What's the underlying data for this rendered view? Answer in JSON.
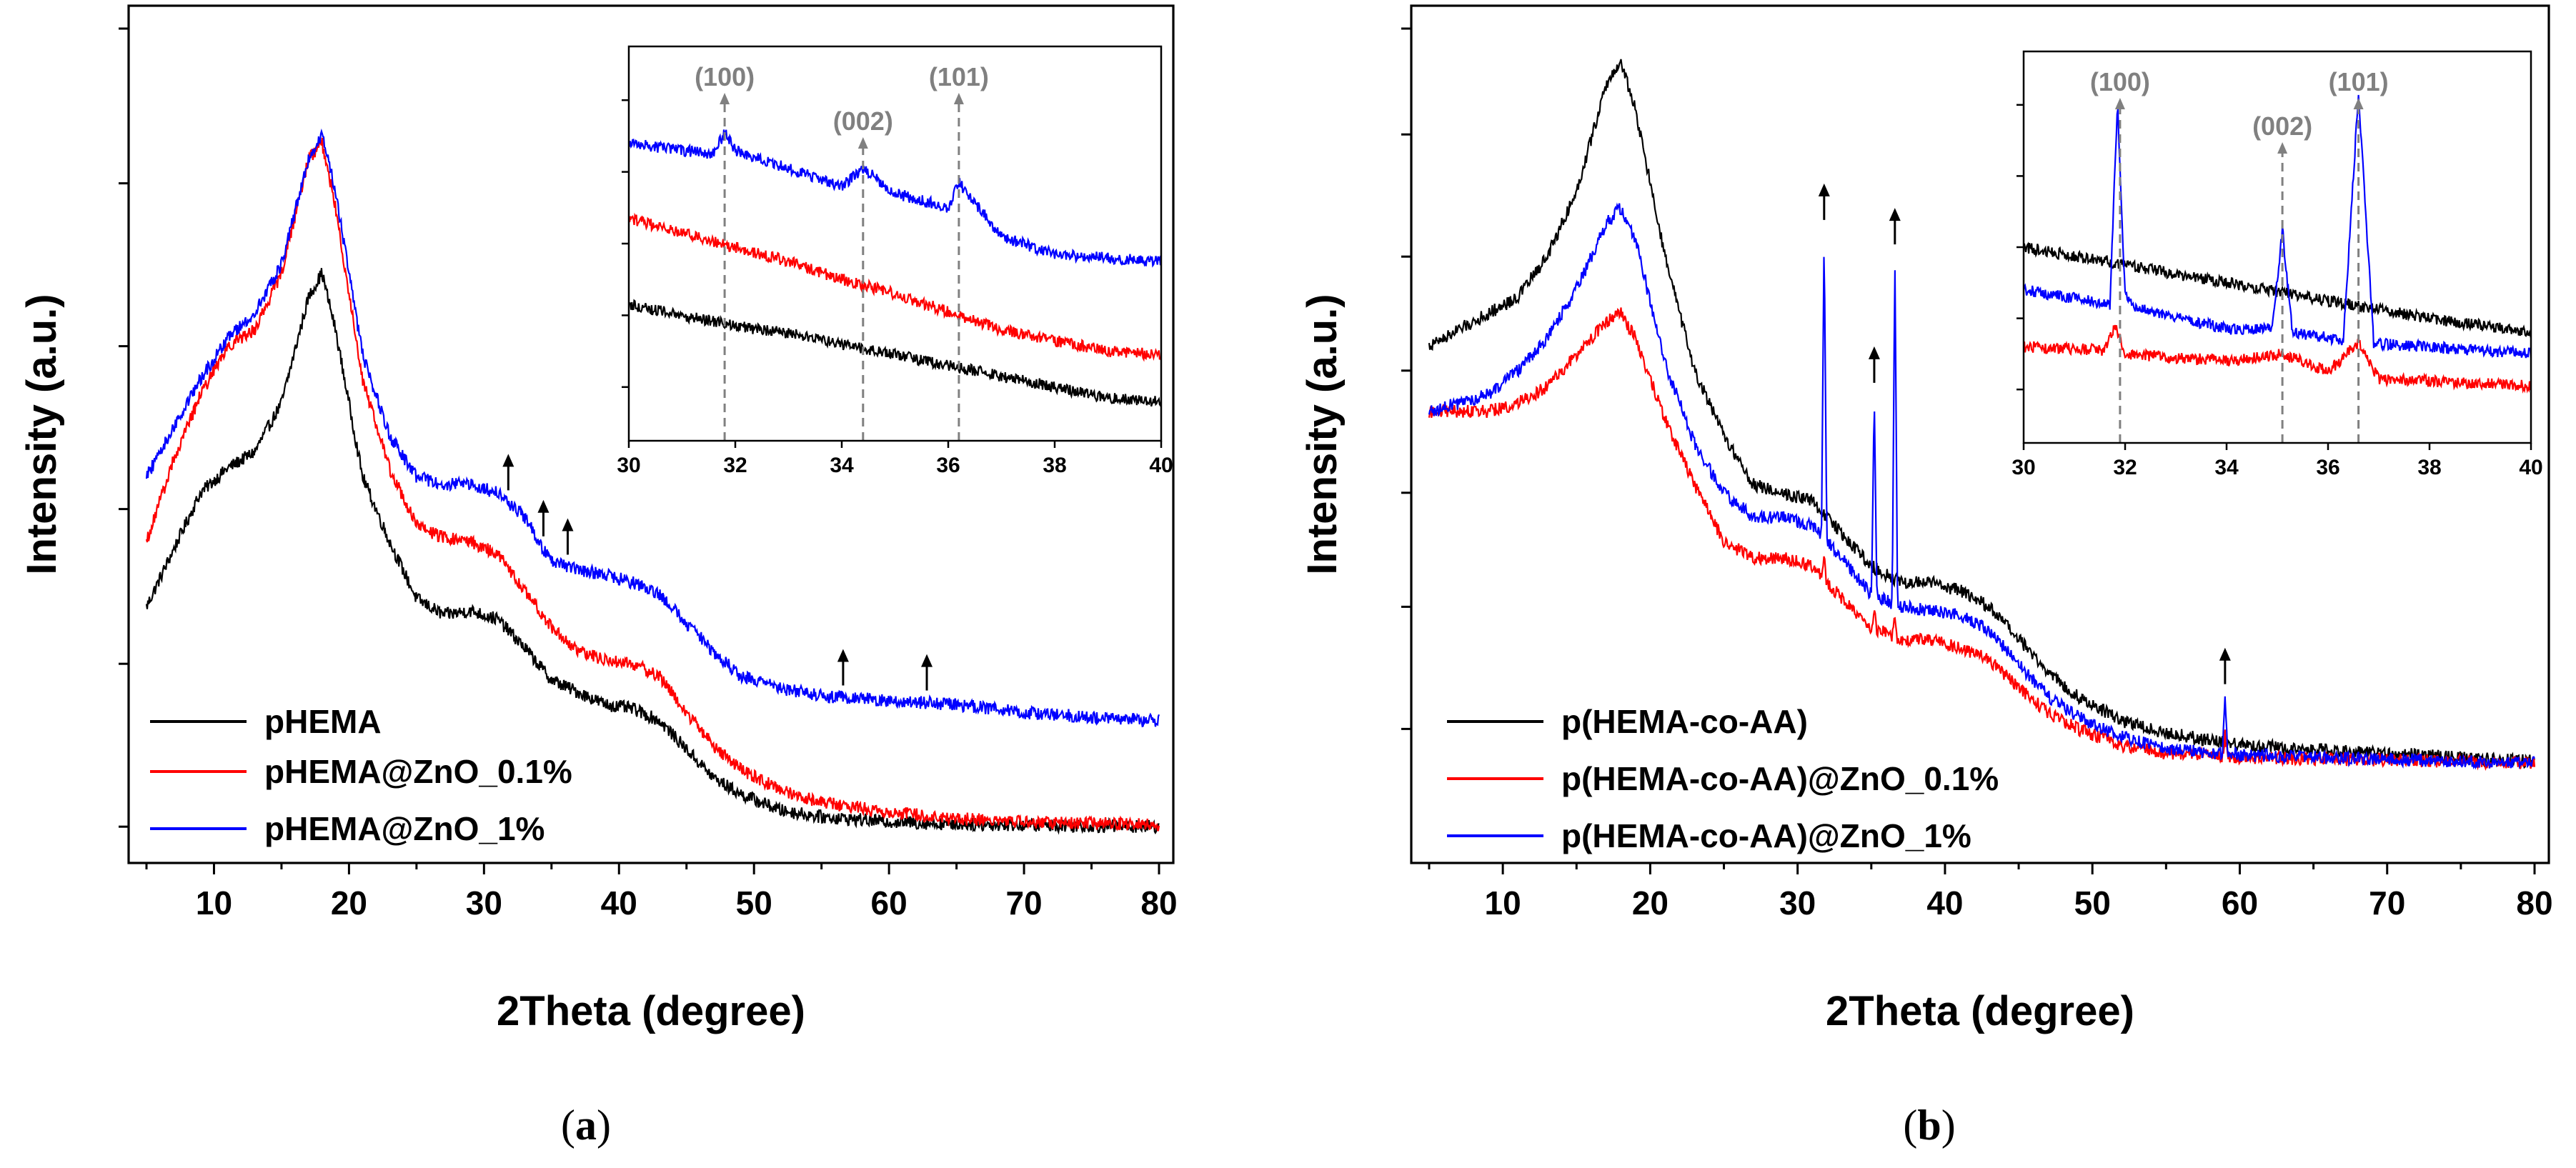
{
  "figure": {
    "panels": [
      "a",
      "b"
    ],
    "captions": {
      "a_open": "(",
      "a_letter": "a",
      "a_close": ")",
      "b_open": "(",
      "b_letter": "b",
      "b_close": ")"
    }
  },
  "chart_data": [
    {
      "id": "a",
      "type": "line",
      "xlabel": "2Theta (degree)",
      "ylabel": "Intensity (a.u.)",
      "xlim": [
        5,
        80
      ],
      "xticks": [
        10,
        20,
        30,
        40,
        50,
        60,
        70,
        80
      ],
      "xtick_labels": [
        "10",
        "20",
        "30",
        "40",
        "50",
        "60",
        "70",
        "80"
      ],
      "ylim": [
        0,
        100
      ],
      "y_tick_values": [
        2,
        22,
        41,
        61,
        81,
        100
      ],
      "y_tick_labels_shown": false,
      "series": [
        {
          "name": "pHEMA",
          "color": "#000000",
          "x": [
            5,
            7,
            9,
            11,
            13,
            15,
            17,
            18,
            19,
            21,
            23,
            25,
            27,
            29,
            31,
            33,
            35,
            37,
            39,
            41,
            43,
            45,
            47,
            49,
            52,
            55,
            60,
            65,
            70,
            75,
            80
          ],
          "y": [
            29,
            36,
            43,
            46,
            48,
            54,
            67,
            70,
            63,
            45,
            37,
            30,
            28,
            28.5,
            27.5,
            24,
            20,
            18.5,
            17,
            16.5,
            15,
            11.5,
            8,
            6,
            4,
            3.2,
            2.6,
            2.3,
            2.2,
            2.1,
            2
          ]
        },
        {
          "name": "pHEMA@ZnO_0.1%",
          "color": "#ff0000",
          "x": [
            5,
            7,
            9,
            11,
            13,
            15,
            17,
            18,
            19,
            21,
            23,
            25,
            27,
            29,
            31,
            33,
            35,
            37,
            39,
            41,
            43,
            45,
            47,
            49,
            52,
            55,
            60,
            65,
            70,
            75,
            80
          ],
          "y": [
            37,
            47,
            55,
            61,
            63,
            70,
            84,
            86,
            78,
            57,
            46,
            39,
            37.5,
            37,
            35.5,
            31,
            26.5,
            23.5,
            22.5,
            22,
            20.5,
            16,
            12,
            9,
            6.5,
            5,
            3.8,
            3,
            2.6,
            2.4,
            2.2
          ]
        },
        {
          "name": "pHEMA@ZnO_1%",
          "color": "#0000ff",
          "x": [
            5,
            7,
            9,
            11,
            13,
            15,
            17,
            18,
            19,
            21,
            23,
            25,
            27,
            29,
            31,
            33,
            35,
            37,
            39,
            41,
            43,
            45,
            47,
            49,
            52,
            55,
            60,
            65,
            70,
            75,
            80
          ],
          "y": [
            45,
            51,
            57,
            62,
            65,
            71,
            84,
            87,
            80,
            60,
            50,
            45,
            44,
            44,
            43,
            40,
            34.5,
            33.5,
            33,
            32,
            30.5,
            27,
            23.5,
            20.5,
            19,
            18,
            17.5,
            17,
            16,
            15.5,
            15
          ]
        }
      ],
      "peak_markers": [
        {
          "x": 31.8
        },
        {
          "x": 34.4
        },
        {
          "x": 36.2
        },
        {
          "x": 56.6
        },
        {
          "x": 62.8
        }
      ],
      "legend": {
        "placement": "bottom-left",
        "entries": [
          "pHEMA",
          "pHEMA@ZnO_0.1%",
          "pHEMA@ZnO_1%"
        ]
      },
      "inset": {
        "xlim": [
          30,
          40
        ],
        "xticks": [
          30,
          32,
          34,
          36,
          38,
          40
        ],
        "xtick_labels": [
          "30",
          "32",
          "34",
          "36",
          "38",
          "40"
        ],
        "ylim": [
          0,
          100
        ],
        "y_tick_values": [
          10,
          30,
          50,
          70,
          90
        ],
        "peaks": [
          {
            "label": "(100)",
            "x": 31.8
          },
          {
            "label": "(002)",
            "x": 34.4
          },
          {
            "label": "(101)",
            "x": 36.2
          }
        ],
        "series": [
          {
            "name": "pHEMA",
            "color": "#000000",
            "x": [
              30,
              31,
              32,
              33,
              34,
              35,
              36,
              37,
              38,
              39,
              40
            ],
            "y": [
              33,
              30,
              27,
              25,
              22,
              19,
              16,
              13,
              10,
              7,
              6
            ]
          },
          {
            "name": "pHEMA@ZnO_0.1%",
            "color": "#ff0000",
            "x": [
              30,
              31,
              32,
              33,
              34,
              35,
              36,
              37,
              38,
              39,
              40
            ],
            "y": [
              57,
              53,
              49,
              45,
              40,
              36,
              31,
              26,
              23,
              20,
              19
            ]
          },
          {
            "name": "pHEMA@ZnO_1%",
            "color": "#0000ff",
            "x": [
              30,
              31,
              31.6,
              31.8,
              32,
              33,
              34,
              34.4,
              35,
              36,
              36.2,
              37,
              38,
              39,
              40
            ],
            "y": [
              78,
              76,
              75,
              81,
              76,
              71,
              66,
              71,
              64,
              60,
              67,
              52,
              47,
              46,
              45
            ]
          }
        ]
      }
    },
    {
      "id": "b",
      "type": "line",
      "xlabel": "2Theta (degree)",
      "ylabel": "Intensity (a.u.)",
      "xlim": [
        5,
        80
      ],
      "xticks": [
        10,
        20,
        30,
        40,
        50,
        60,
        70,
        80
      ],
      "xtick_labels": [
        "10",
        "20",
        "30",
        "40",
        "50",
        "60",
        "70",
        "80"
      ],
      "ylim": [
        0,
        100
      ],
      "y_tick_values": [
        14,
        29,
        43,
        58,
        72,
        87,
        100
      ],
      "y_tick_labels_shown": false,
      "series": [
        {
          "name": "p(HEMA-co-AA)",
          "color": "#000000",
          "x": [
            5,
            7,
            9,
            11,
            13,
            15,
            17,
            18,
            19,
            21,
            23,
            25,
            27,
            29,
            31,
            33,
            35,
            37,
            39,
            41,
            43,
            45,
            47,
            49,
            52,
            55,
            60,
            65,
            70,
            75,
            80
          ],
          "y": [
            61,
            63,
            65,
            67,
            72,
            80,
            93,
            96,
            90,
            72,
            58,
            50,
            44,
            43,
            42,
            38,
            34,
            32,
            32,
            31,
            29,
            25,
            21,
            18,
            15,
            13.5,
            12,
            11.5,
            11,
            10.5,
            10
          ]
        },
        {
          "name": "p(HEMA-co-AA)@ZnO_0.1%",
          "color": "#ff0000",
          "x": [
            5,
            7,
            9,
            11,
            13,
            15,
            17,
            18,
            19,
            21,
            23,
            25,
            27,
            29,
            31,
            33,
            35,
            37,
            39,
            41,
            43,
            45,
            47,
            49,
            52,
            55,
            60,
            65,
            70,
            75,
            80
          ],
          "y": [
            53,
            53,
            53,
            54,
            56,
            60,
            64,
            65,
            62,
            52,
            44,
            37,
            35,
            35,
            34,
            30,
            26.5,
            25,
            25,
            24,
            22.5,
            19,
            16,
            14,
            12,
            11,
            10.5,
            10.3,
            10.2,
            10,
            9.8
          ]
        },
        {
          "name": "p(HEMA-co-AA)@ZnO_1%",
          "color": "#0000ff",
          "x": [
            5,
            7,
            9,
            11,
            13,
            15,
            17,
            18,
            19,
            21,
            23,
            25,
            27,
            29,
            31,
            33,
            35,
            37,
            39,
            41,
            43,
            45,
            47,
            49,
            52,
            55,
            60,
            65,
            70,
            75,
            80
          ],
          "y": [
            53,
            54,
            55,
            58,
            62,
            68,
            76,
            78,
            74,
            59,
            49,
            43,
            40,
            40,
            39,
            35,
            30.5,
            29,
            28.5,
            28,
            26,
            22,
            18,
            15.5,
            13,
            11.5,
            10.8,
            10.5,
            10.3,
            10,
            9.8
          ]
        }
      ],
      "sharp_peaks": [
        {
          "x": 31.8,
          "top": 75
        },
        {
          "x": 35.2,
          "top": 55
        },
        {
          "x": 36.6,
          "top": 72
        },
        {
          "x": 59,
          "top": 18
        }
      ],
      "peak_markers": [
        {
          "x": 31.8
        },
        {
          "x": 35.2
        },
        {
          "x": 36.6
        },
        {
          "x": 59
        }
      ],
      "legend": {
        "placement": "bottom-left",
        "entries": [
          "p(HEMA-co-AA)",
          "p(HEMA-co-AA)@ZnO_0.1%",
          "p(HEMA-co-AA)@ZnO_1%"
        ]
      },
      "inset": {
        "xlim": [
          30,
          40
        ],
        "xticks": [
          30,
          32,
          34,
          36,
          38,
          40
        ],
        "xtick_labels": [
          "30",
          "32",
          "34",
          "36",
          "38",
          "40"
        ],
        "ylim": [
          0,
          100
        ],
        "y_tick_values": [
          10,
          30,
          50,
          70,
          90
        ],
        "peaks": [
          {
            "label": "(100)",
            "x": 31.9
          },
          {
            "label": "(002)",
            "x": 35.1
          },
          {
            "label": "(101)",
            "x": 36.6
          }
        ],
        "series": [
          {
            "name": "p(HEMA-co-AA)",
            "color": "#000000",
            "x": [
              30,
              32,
              34,
              36,
              38,
              40
            ],
            "y": [
              50,
              45,
              40,
              35,
              30,
              26
            ]
          },
          {
            "name": "p(HEMA-co-AA)@ZnO_0.1%",
            "color": "#ff0000",
            "x": [
              30,
              31.6,
              31.8,
              32,
              34,
              35.1,
              36,
              36.6,
              37,
              40
            ],
            "y": [
              22,
              21,
              28,
              20,
              18,
              20,
              15,
              23,
              13,
              11
            ]
          },
          {
            "name": "p(HEMA-co-AA)@ZnO_1%",
            "color": "#0000ff",
            "x": [
              30,
              31.7,
              31.85,
              32,
              32.2,
              34,
              34.9,
              35.1,
              35.3,
              36.3,
              36.6,
              36.9,
              40
            ],
            "y": [
              38,
              34,
              91,
              36,
              33,
              27,
              27,
              55,
              26,
              24,
              93,
              23,
              20
            ]
          }
        ]
      }
    }
  ]
}
